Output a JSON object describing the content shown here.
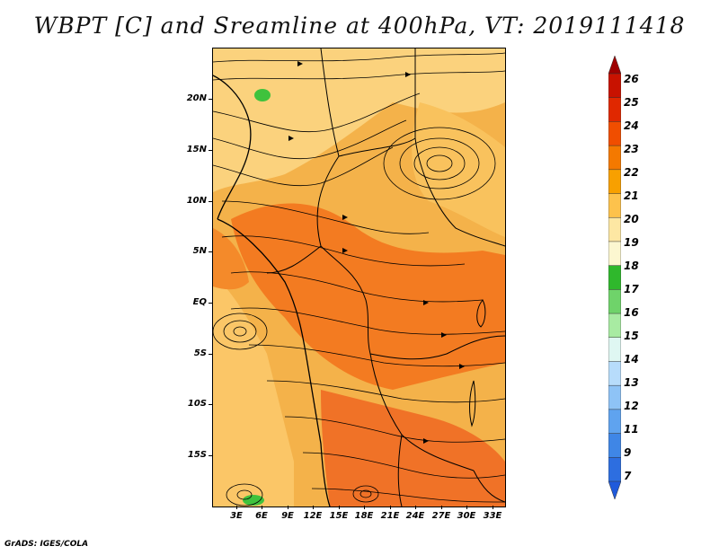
{
  "title": "WBPT [C] and Sreamline at 400hPa, VT: 2019111418",
  "footer": "GrADS: IGES/COLA",
  "map": {
    "lat_labels": [
      "20N",
      "15N",
      "10N",
      "5N",
      "EQ",
      "5S",
      "10S",
      "15S"
    ],
    "lon_labels": [
      "3E",
      "6E",
      "9E",
      "12E",
      "15E",
      "18E",
      "21E",
      "24E",
      "27E",
      "30E",
      "33E"
    ]
  },
  "colorbar": {
    "labels": [
      "26",
      "25",
      "24",
      "23",
      "22",
      "21",
      "20",
      "19",
      "18",
      "17",
      "16",
      "15",
      "14",
      "13",
      "12",
      "11",
      "9",
      "7"
    ],
    "colors": [
      "#9e0000",
      "#c81200",
      "#e02800",
      "#f04e00",
      "#f47900",
      "#f8a000",
      "#fdc24c",
      "#fde7a3",
      "#fcf7d0",
      "#2fb82c",
      "#6fd36a",
      "#a8eba2",
      "#dff7f2",
      "#b7dcfb",
      "#8ec3f6",
      "#5fa3ef",
      "#3f86e6",
      "#2d6ee0",
      "#1f5adb"
    ]
  }
}
